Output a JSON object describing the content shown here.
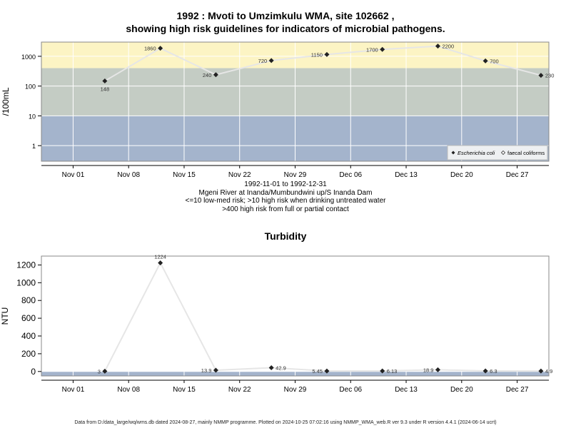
{
  "header": {
    "title_line1": "1992 : Mvoti to Umzimkulu WMA, site 102662 ,",
    "title_line2": "showing high risk guidelines for indicators of microbial pathogens."
  },
  "caption": {
    "line1": "1992-11-01 to 1992-12-31",
    "line2": "Mgeni River at Inanda/Mumbundwini up/S Inanda Dam",
    "line3": "<=10 low-med risk; >10 high risk when drinking untreated water",
    "line4": ">400 high risk from full or partial contact"
  },
  "turbidity_title": "Turbidity",
  "footer": "Data from D:/data_large/wq/wms.db dated 2024-08-27, mainly NMMP programme. Plotted on 2024-10-25 07:02:16 using NMMP_WMA_web.R ver 9.3 under R version 4.4.1 (2024-06-14 ucrt)",
  "colors": {
    "panel_border": "#888888",
    "band_high": "#fcf4c4",
    "band_mid": "#c4ccc4",
    "band_low": "#a4b4cc",
    "turbidity_bg": "#fce0fc",
    "turbidity_base": "#a4b4cc",
    "line": "#e6e6e6",
    "marker": "#222222"
  },
  "chart_data": [
    {
      "type": "scatter",
      "scale": "log",
      "xlim": [
        "1992-10-28",
        "1992-12-31"
      ],
      "ylim": [
        0.3,
        3000
      ],
      "yticks": [
        1,
        10,
        100,
        1000
      ],
      "ytick_labels": [
        "1",
        "10",
        "100",
        "1000"
      ],
      "xticks": [
        "1992-11-01",
        "1992-11-08",
        "1992-11-15",
        "1992-11-22",
        "1992-11-29",
        "1992-12-06",
        "1992-12-13",
        "1992-12-20",
        "1992-12-27"
      ],
      "xtick_labels": [
        "Nov 01",
        "Nov 08",
        "Nov 15",
        "Nov 22",
        "Nov 29",
        "Dec 06",
        "Dec 13",
        "Dec 20",
        "Dec 27"
      ],
      "ylabel": "/100mL",
      "grid": true,
      "bands": [
        {
          "from": 400,
          "to": 3000,
          "color": "#fcf4c4"
        },
        {
          "from": 10,
          "to": 400,
          "color": "#c4ccc4"
        },
        {
          "from": 0.3,
          "to": 10,
          "color": "#a4b4cc"
        }
      ],
      "legend": {
        "position": "bottom-right",
        "entries": [
          {
            "label": "Escherichia coli",
            "italic": true,
            "marker": "filled-diamond"
          },
          {
            "label": "faecal coliforms",
            "italic": false,
            "marker": "open-diamond"
          }
        ]
      },
      "series": [
        {
          "name": "Escherichia coli",
          "x": [
            "1992-11-05",
            "1992-11-12",
            "1992-11-19",
            "1992-11-26",
            "1992-12-03",
            "1992-12-10",
            "1992-12-17",
            "1992-12-23",
            "1992-12-30"
          ],
          "y": [
            148,
            1860,
            240,
            720,
            1150,
            1700,
            2200,
            700,
            230
          ],
          "labels": [
            "148",
            "1860",
            "240",
            "720",
            "1150",
            "1700",
            "2200",
            "700",
            "230"
          ],
          "label_pos": [
            "below",
            "left",
            "left",
            "left",
            "left",
            "left",
            "right",
            "right",
            "right"
          ]
        }
      ]
    },
    {
      "type": "scatter",
      "scale": "linear",
      "xlim": [
        "1992-10-28",
        "1992-12-31"
      ],
      "ylim": [
        -50,
        1300
      ],
      "yticks": [
        0,
        200,
        400,
        600,
        800,
        1000,
        1200
      ],
      "ytick_labels": [
        "0",
        "200",
        "400",
        "600",
        "800",
        "1000",
        "1200"
      ],
      "xticks": [
        "1992-11-01",
        "1992-11-08",
        "1992-11-15",
        "1992-11-22",
        "1992-11-29",
        "1992-12-06",
        "1992-12-13",
        "1992-12-20",
        "1992-12-27"
      ],
      "xtick_labels": [
        "Nov 01",
        "Nov 08",
        "Nov 15",
        "Nov 22",
        "Nov 29",
        "Dec 06",
        "Dec 13",
        "Dec 20",
        "Dec 27"
      ],
      "ylabel": "NTU",
      "grid": true,
      "bands": [
        {
          "from": -50,
          "to": 0,
          "color": "#a4b4cc"
        }
      ],
      "series": [
        {
          "name": "Turbidity",
          "x": [
            "1992-11-05",
            "1992-11-12",
            "1992-11-19",
            "1992-11-26",
            "1992-12-03",
            "1992-12-10",
            "1992-12-17",
            "1992-12-23",
            "1992-12-30"
          ],
          "y": [
            3,
            1224,
            13.9,
            42.9,
            5.45,
            6.13,
            18.9,
            6.3,
            4.9
          ],
          "labels": [
            "3",
            "1224",
            "13.9",
            "42.9",
            "5.45",
            "6.13",
            "18.9",
            "6.3",
            "4.9"
          ],
          "label_pos": [
            "left",
            "above",
            "left",
            "right",
            "left",
            "right",
            "left",
            "right",
            "right"
          ]
        }
      ]
    }
  ]
}
